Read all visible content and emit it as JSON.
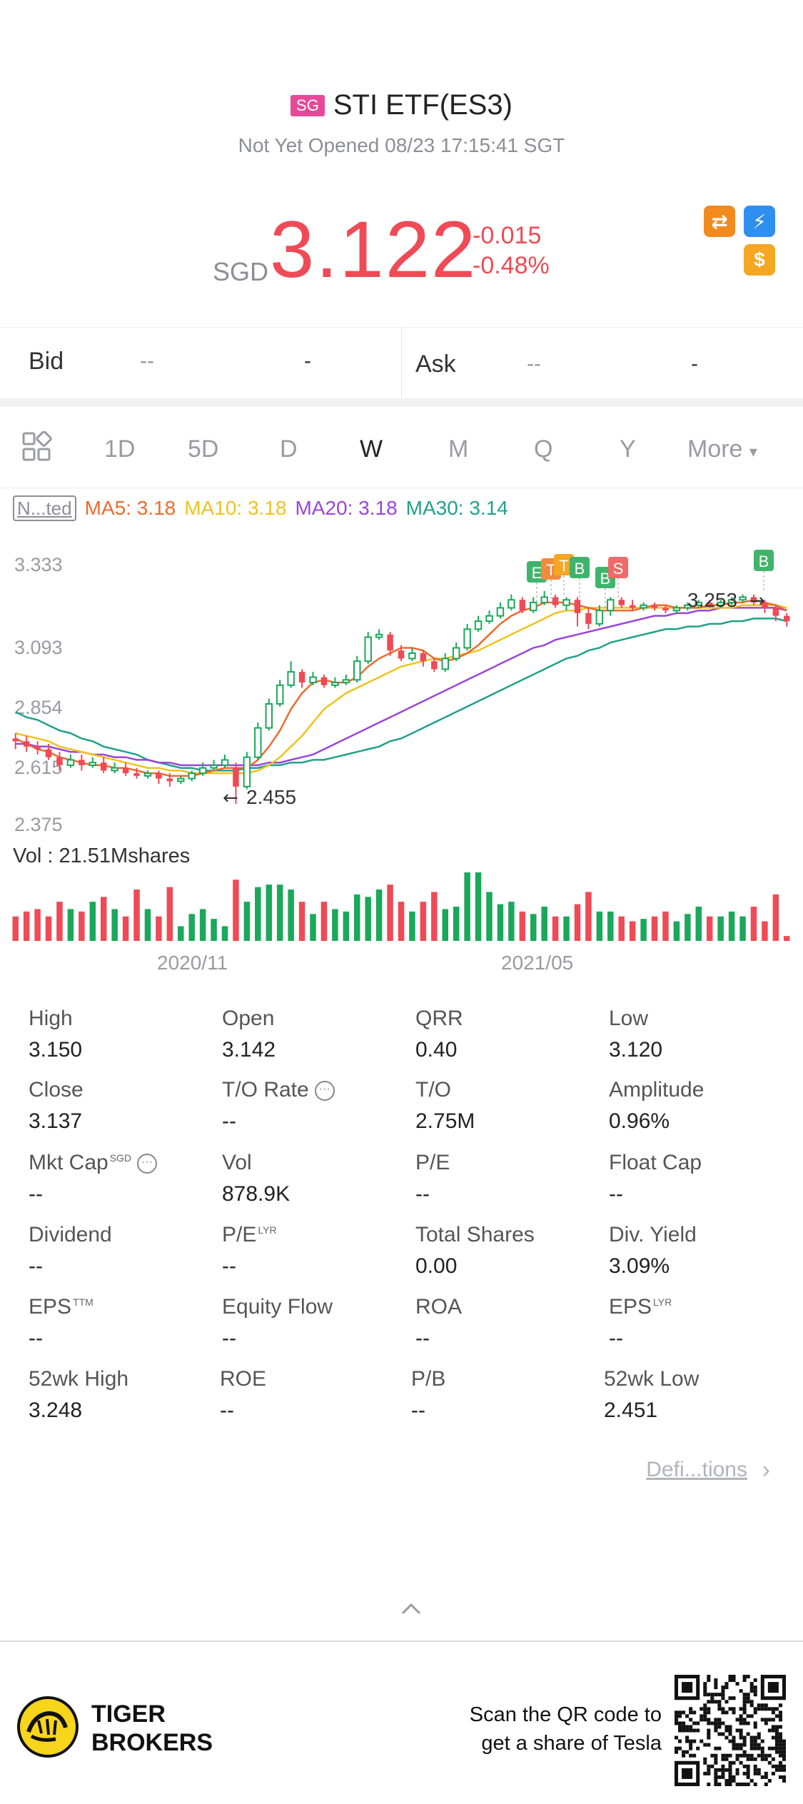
{
  "header": {
    "market_badge": "SG",
    "title": "STI ETF(ES3)",
    "status": "Not Yet Opened 08/23 17:15:41 SGT"
  },
  "quote": {
    "currency": "SGD",
    "price": "3.122",
    "change": "-0.015",
    "change_pct": "-0.48%",
    "color_down": "#ef4a55",
    "icons": [
      "swap-orange-icon",
      "lightning-blue-icon",
      "dollar-orange-icon"
    ]
  },
  "bidask": {
    "bid_label": "Bid",
    "bid_price": "--",
    "bid_size": "-",
    "ask_label": "Ask",
    "ask_price": "--",
    "ask_size": "-"
  },
  "tabs": {
    "items": [
      "1D",
      "5D",
      "D",
      "W",
      "M",
      "Q",
      "Y",
      "More"
    ],
    "active": "W"
  },
  "ma_legend": {
    "chip": "N...ted",
    "ma5": "MA5: 3.18",
    "ma10": "MA10: 3.18",
    "ma20": "MA20: 3.18",
    "ma30": "MA30: 3.14",
    "colors": {
      "ma5": "#f06a2c",
      "ma10": "#f0c21b",
      "ma20": "#9b45d8",
      "ma30": "#21a08a"
    }
  },
  "chart_data": {
    "type": "candlestick",
    "y_ticks": [
      "3.333",
      "3.093",
      "2.854",
      "2.615",
      "2.375"
    ],
    "ylim": [
      2.375,
      3.333
    ],
    "annotations": {
      "high_label": "3.253",
      "low_label": "2.455"
    },
    "markers": [
      "E",
      "T",
      "T",
      "B",
      "B",
      "S",
      "B"
    ],
    "x_labels": [
      "2020/11",
      "2021/05"
    ],
    "volume_label": "Vol  : 21.51Mshares",
    "candles": [
      [
        2.7,
        2.69,
        2.72,
        2.66,
        0
      ],
      [
        2.69,
        2.67,
        2.71,
        2.65,
        0
      ],
      [
        2.67,
        2.66,
        2.69,
        2.64,
        0
      ],
      [
        2.66,
        2.63,
        2.68,
        2.62,
        0
      ],
      [
        2.63,
        2.6,
        2.65,
        2.58,
        0
      ],
      [
        2.6,
        2.62,
        2.64,
        2.59,
        1
      ],
      [
        2.62,
        2.6,
        2.64,
        2.58,
        0
      ],
      [
        2.6,
        2.61,
        2.63,
        2.59,
        1
      ],
      [
        2.61,
        2.58,
        2.63,
        2.57,
        0
      ],
      [
        2.58,
        2.59,
        2.61,
        2.57,
        1
      ],
      [
        2.59,
        2.57,
        2.61,
        2.56,
        0
      ],
      [
        2.57,
        2.56,
        2.59,
        2.55,
        0
      ],
      [
        2.56,
        2.57,
        2.58,
        2.55,
        1
      ],
      [
        2.57,
        2.55,
        2.58,
        2.53,
        0
      ],
      [
        2.55,
        2.54,
        2.57,
        2.52,
        0
      ],
      [
        2.54,
        2.55,
        2.56,
        2.53,
        1
      ],
      [
        2.55,
        2.57,
        2.58,
        2.54,
        1
      ],
      [
        2.57,
        2.59,
        2.61,
        2.56,
        1
      ],
      [
        2.59,
        2.6,
        2.62,
        2.58,
        1
      ],
      [
        2.6,
        2.62,
        2.64,
        2.59,
        1
      ],
      [
        2.59,
        2.52,
        2.61,
        2.455,
        0
      ],
      [
        2.52,
        2.63,
        2.65,
        2.51,
        1
      ],
      [
        2.63,
        2.74,
        2.76,
        2.62,
        1
      ],
      [
        2.74,
        2.83,
        2.85,
        2.73,
        1
      ],
      [
        2.83,
        2.9,
        2.92,
        2.82,
        1
      ],
      [
        2.9,
        2.95,
        2.99,
        2.89,
        1
      ],
      [
        2.95,
        2.91,
        2.96,
        2.89,
        0
      ],
      [
        2.91,
        2.93,
        2.95,
        2.9,
        1
      ],
      [
        2.93,
        2.9,
        2.94,
        2.89,
        0
      ],
      [
        2.9,
        2.91,
        2.93,
        2.89,
        1
      ],
      [
        2.91,
        2.92,
        2.94,
        2.9,
        1
      ],
      [
        2.92,
        2.99,
        3.01,
        2.91,
        1
      ],
      [
        2.99,
        3.08,
        3.1,
        2.98,
        1
      ],
      [
        3.08,
        3.09,
        3.11,
        3.07,
        1
      ],
      [
        3.09,
        3.03,
        3.1,
        3.01,
        0
      ],
      [
        3.03,
        3.0,
        3.05,
        2.99,
        0
      ],
      [
        3.0,
        3.02,
        3.04,
        2.99,
        1
      ],
      [
        3.02,
        2.99,
        3.03,
        2.97,
        0
      ],
      [
        2.99,
        2.96,
        3.0,
        2.95,
        0
      ],
      [
        2.96,
        3.0,
        3.02,
        2.95,
        1
      ],
      [
        3.0,
        3.04,
        3.06,
        2.99,
        1
      ],
      [
        3.04,
        3.11,
        3.13,
        3.03,
        1
      ],
      [
        3.11,
        3.14,
        3.16,
        3.1,
        1
      ],
      [
        3.14,
        3.16,
        3.18,
        3.13,
        1
      ],
      [
        3.16,
        3.19,
        3.21,
        3.15,
        1
      ],
      [
        3.19,
        3.22,
        3.24,
        3.18,
        1
      ],
      [
        3.22,
        3.18,
        3.23,
        3.17,
        0
      ],
      [
        3.18,
        3.21,
        3.23,
        3.17,
        1
      ],
      [
        3.21,
        3.23,
        3.253,
        3.2,
        1
      ],
      [
        3.23,
        3.2,
        3.24,
        3.19,
        0
      ],
      [
        3.2,
        3.22,
        3.23,
        3.18,
        1
      ],
      [
        3.22,
        3.17,
        3.23,
        3.12,
        0
      ],
      [
        3.17,
        3.13,
        3.19,
        3.11,
        0
      ],
      [
        3.13,
        3.18,
        3.2,
        3.12,
        1
      ],
      [
        3.18,
        3.22,
        3.23,
        3.16,
        1
      ],
      [
        3.22,
        3.2,
        3.23,
        3.19,
        0
      ],
      [
        3.2,
        3.19,
        3.22,
        3.18,
        0
      ],
      [
        3.19,
        3.2,
        3.21,
        3.18,
        1
      ],
      [
        3.2,
        3.19,
        3.21,
        3.18,
        0
      ],
      [
        3.19,
        3.18,
        3.2,
        3.17,
        0
      ],
      [
        3.18,
        3.19,
        3.2,
        3.17,
        1
      ],
      [
        3.19,
        3.2,
        3.21,
        3.18,
        1
      ],
      [
        3.2,
        3.21,
        3.22,
        3.19,
        1
      ],
      [
        3.21,
        3.2,
        3.22,
        3.19,
        0
      ],
      [
        3.2,
        3.21,
        3.22,
        3.19,
        1
      ],
      [
        3.21,
        3.22,
        3.23,
        3.2,
        1
      ],
      [
        3.22,
        3.23,
        3.24,
        3.21,
        1
      ],
      [
        3.23,
        3.21,
        3.24,
        3.2,
        0
      ],
      [
        3.21,
        3.19,
        3.22,
        3.17,
        0
      ],
      [
        3.19,
        3.16,
        3.2,
        3.14,
        0
      ],
      [
        3.16,
        3.14,
        3.17,
        3.12,
        0
      ]
    ],
    "volumes": [
      10,
      12,
      13,
      10,
      16,
      13,
      12,
      16,
      18,
      13,
      10,
      21,
      13,
      10,
      22,
      6,
      11,
      13,
      9,
      6,
      25,
      16,
      22,
      23,
      23,
      21,
      16,
      11,
      16,
      13,
      12,
      19,
      18,
      21,
      23,
      16,
      12,
      16,
      20,
      13,
      14,
      28,
      28,
      20,
      15,
      16,
      12,
      11,
      14,
      10,
      10,
      15,
      20,
      12,
      12,
      10,
      8,
      9,
      10,
      12,
      8,
      11,
      14,
      10,
      10,
      12,
      10,
      14,
      8,
      19,
      2
    ],
    "ma_series": {
      "ma5": [
        2.7,
        2.68,
        2.66,
        2.65,
        2.63,
        2.62,
        2.61,
        2.6,
        2.6,
        2.59,
        2.59,
        2.58,
        2.57,
        2.57,
        2.56,
        2.56,
        2.56,
        2.57,
        2.58,
        2.59,
        2.59,
        2.59,
        2.62,
        2.67,
        2.73,
        2.81,
        2.87,
        2.91,
        2.92,
        2.91,
        2.91,
        2.93,
        2.97,
        3.0,
        3.02,
        3.04,
        3.04,
        3.03,
        3.0,
        2.99,
        3.0,
        3.02,
        3.05,
        3.09,
        3.13,
        3.16,
        3.18,
        3.19,
        3.21,
        3.21,
        3.21,
        3.2,
        3.19,
        3.18,
        3.18,
        3.18,
        3.18,
        3.19,
        3.2,
        3.2,
        3.19,
        3.19,
        3.19,
        3.2,
        3.2,
        3.21,
        3.21,
        3.22,
        3.21,
        3.2,
        3.18
      ],
      "ma10": [
        2.72,
        2.71,
        2.7,
        2.69,
        2.67,
        2.66,
        2.65,
        2.64,
        2.63,
        2.62,
        2.61,
        2.6,
        2.59,
        2.59,
        2.58,
        2.58,
        2.57,
        2.57,
        2.57,
        2.57,
        2.57,
        2.57,
        2.58,
        2.6,
        2.63,
        2.67,
        2.71,
        2.76,
        2.81,
        2.84,
        2.87,
        2.89,
        2.91,
        2.93,
        2.95,
        2.97,
        2.98,
        2.99,
        3.0,
        3.0,
        3.01,
        3.02,
        3.03,
        3.05,
        3.07,
        3.09,
        3.11,
        3.13,
        3.15,
        3.17,
        3.18,
        3.18,
        3.19,
        3.19,
        3.19,
        3.19,
        3.19,
        3.19,
        3.19,
        3.19,
        3.19,
        3.19,
        3.19,
        3.19,
        3.19,
        3.19,
        3.2,
        3.2,
        3.2,
        3.2,
        3.19
      ],
      "ma20": [
        2.68,
        2.68,
        2.67,
        2.67,
        2.66,
        2.65,
        2.65,
        2.64,
        2.64,
        2.63,
        2.63,
        2.62,
        2.62,
        2.61,
        2.61,
        2.6,
        2.6,
        2.6,
        2.6,
        2.6,
        2.6,
        2.6,
        2.6,
        2.61,
        2.61,
        2.62,
        2.63,
        2.64,
        2.66,
        2.68,
        2.7,
        2.72,
        2.74,
        2.76,
        2.78,
        2.8,
        2.82,
        2.84,
        2.86,
        2.88,
        2.9,
        2.92,
        2.94,
        2.96,
        2.98,
        3.0,
        3.02,
        3.04,
        3.05,
        3.07,
        3.08,
        3.09,
        3.1,
        3.11,
        3.12,
        3.13,
        3.14,
        3.15,
        3.16,
        3.16,
        3.17,
        3.17,
        3.18,
        3.18,
        3.19,
        3.19,
        3.19,
        3.19,
        3.19,
        3.19,
        3.18
      ],
      "ma30": [
        2.8,
        2.78,
        2.77,
        2.75,
        2.73,
        2.72,
        2.7,
        2.69,
        2.67,
        2.66,
        2.65,
        2.64,
        2.62,
        2.61,
        2.6,
        2.59,
        2.59,
        2.58,
        2.58,
        2.58,
        2.58,
        2.59,
        2.59,
        2.6,
        2.6,
        2.61,
        2.61,
        2.62,
        2.62,
        2.63,
        2.64,
        2.65,
        2.66,
        2.67,
        2.69,
        2.7,
        2.72,
        2.74,
        2.76,
        2.78,
        2.8,
        2.82,
        2.84,
        2.86,
        2.88,
        2.9,
        2.92,
        2.94,
        2.96,
        2.98,
        3.0,
        3.01,
        3.03,
        3.04,
        3.06,
        3.07,
        3.08,
        3.09,
        3.1,
        3.11,
        3.11,
        3.12,
        3.12,
        3.13,
        3.13,
        3.14,
        3.14,
        3.15,
        3.15,
        3.15,
        3.14
      ]
    }
  },
  "stats": [
    {
      "label": "High",
      "value": "3.150"
    },
    {
      "label": "Open",
      "value": "3.142"
    },
    {
      "label": "QRR",
      "value": "0.40"
    },
    {
      "label": "Low",
      "value": "3.120"
    },
    {
      "label": "Close",
      "value": "3.137"
    },
    {
      "label": "T/O Rate",
      "value": "--",
      "info": true
    },
    {
      "label": "T/O",
      "value": "2.75M"
    },
    {
      "label": "Amplitude",
      "value": "0.96%"
    },
    {
      "label": "Mkt Cap",
      "value": "--",
      "sup": "SGD",
      "info": true
    },
    {
      "label": "Vol",
      "value": "878.9K"
    },
    {
      "label": "P/E",
      "value": "--"
    },
    {
      "label": "Float Cap",
      "value": "--"
    },
    {
      "label": "Dividend",
      "value": "--"
    },
    {
      "label": "P/E",
      "value": "--",
      "sup": "LYR"
    },
    {
      "label": "Total Shares",
      "value": "0.00"
    },
    {
      "label": "Div. Yield",
      "value": "3.09%"
    },
    {
      "label": "EPS",
      "value": "--",
      "sup": "TTM"
    },
    {
      "label": "Equity Flow",
      "value": "--"
    },
    {
      "label": "ROA",
      "value": "--"
    },
    {
      "label": "EPS",
      "value": "--",
      "sup": "LYR"
    },
    {
      "label": "52wk High",
      "value": "3.248"
    },
    {
      "label": "ROE",
      "value": "--"
    },
    {
      "label": "P/B",
      "value": "--"
    },
    {
      "label": "52wk Low",
      "value": "2.451"
    }
  ],
  "definitions_link": "Defi...tions",
  "footer": {
    "brand_line1": "TIGER",
    "brand_line2": "BROKERS",
    "scan_line1": "Scan the QR code to",
    "scan_line2": "get a share of Tesla"
  }
}
